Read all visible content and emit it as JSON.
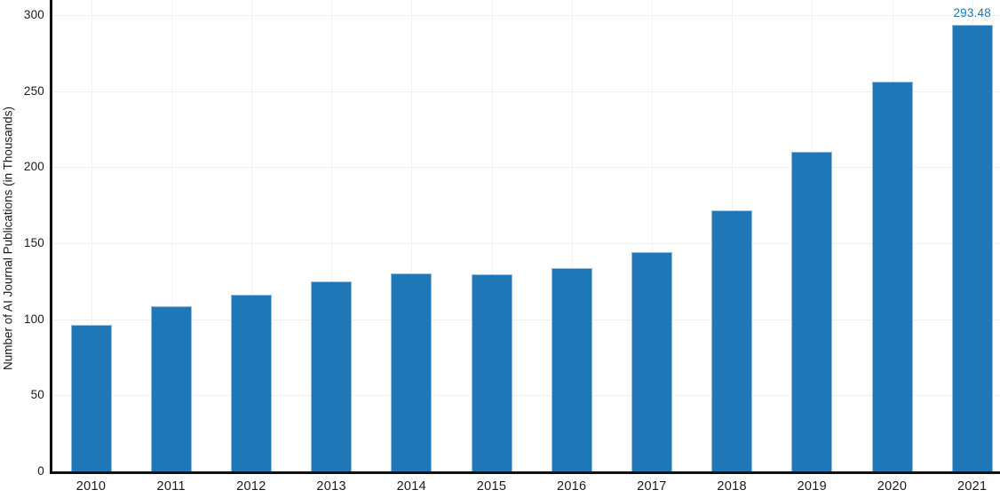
{
  "chart_data": {
    "type": "bar",
    "title": "",
    "xlabel": "",
    "ylabel": "Number of AI Journal Publications (in Thousands)",
    "categories": [
      "2010",
      "2011",
      "2012",
      "2013",
      "2014",
      "2015",
      "2016",
      "2017",
      "2018",
      "2019",
      "2020",
      "2021"
    ],
    "values": [
      96.5,
      108.8,
      116.0,
      124.9,
      130.0,
      129.8,
      133.5,
      144.0,
      171.5,
      209.9,
      256.0,
      293.48
    ],
    "value_labels": {
      "2021": "293.48"
    },
    "y_ticks": [
      0,
      50,
      100,
      150,
      200,
      250,
      300
    ],
    "ylim": [
      0,
      300
    ],
    "grid": true,
    "legend": "none",
    "colors": {
      "bar_fill": "#1f77b8",
      "bar_edge": "#8fbcdf",
      "axis": "#111111",
      "gridline_h": "#f0f0f0",
      "gridline_v": "#f3f3f3",
      "tick_label": "#1a1a1a",
      "annotation": "#1f77b4"
    }
  }
}
